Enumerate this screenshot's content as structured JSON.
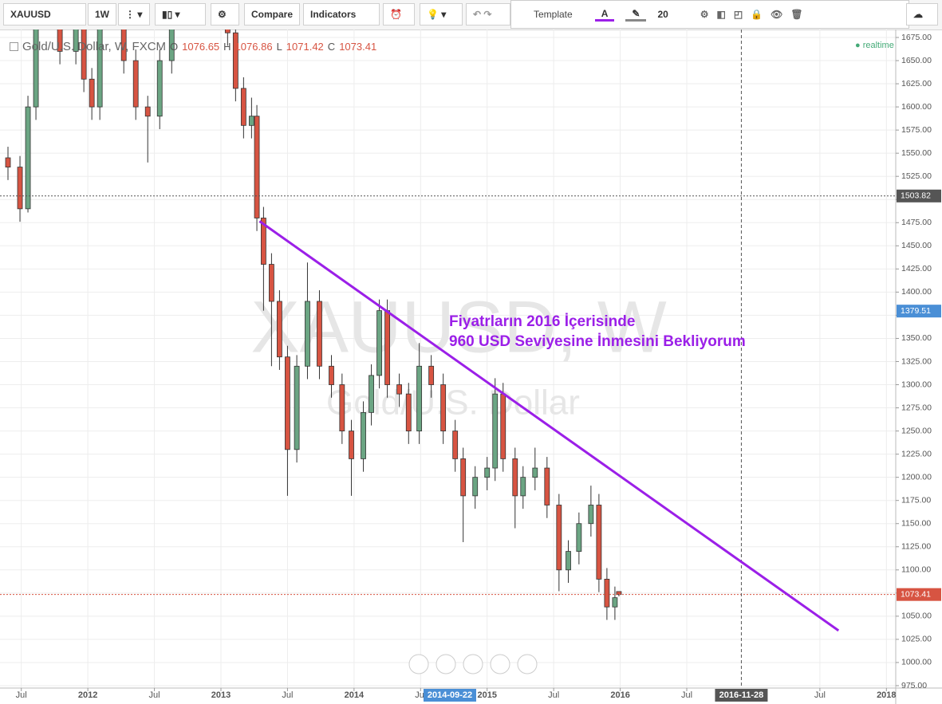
{
  "toolbar": {
    "symbol": "XAUUSD",
    "interval": "1W",
    "compare": "Compare",
    "indicators": "Indicators",
    "template": "Template",
    "font_size": 20
  },
  "legend": {
    "title": "Gold/U.S. Dollar, W, FXCM",
    "o_label": "O",
    "open": 1076.65,
    "h_label": "H",
    "high": 1076.86,
    "l_label": "L",
    "low": 1071.42,
    "c_label": "C",
    "close": 1073.41,
    "status": "realtime"
  },
  "chart_data": {
    "type": "candlestick",
    "watermark": {
      "symbol": "XAUUSD, W",
      "description": "Gold/U.S. Dollar"
    },
    "x": [
      2011.4,
      2011.49,
      2011.55,
      2011.61,
      2011.7,
      2011.79,
      2011.91,
      2011.97,
      2012.03,
      2012.09,
      2012.18,
      2012.27,
      2012.36,
      2012.45,
      2012.54,
      2012.63,
      2012.72,
      2012.84,
      2012.96,
      2013.05,
      2013.11,
      2013.17,
      2013.23,
      2013.27,
      2013.32,
      2013.38,
      2013.44,
      2013.5,
      2013.57,
      2013.65,
      2013.74,
      2013.83,
      2013.91,
      2013.98,
      2014.07,
      2014.13,
      2014.19,
      2014.25,
      2014.34,
      2014.41,
      2014.49,
      2014.58,
      2014.67,
      2014.76,
      2014.82,
      2014.91,
      2015.0,
      2015.06,
      2015.12,
      2015.21,
      2015.27,
      2015.36,
      2015.45,
      2015.54,
      2015.61,
      2015.69,
      2015.78,
      2015.84,
      2015.9,
      2015.96,
      2015.99
    ],
    "open": [
      1545,
      1535,
      1490,
      1600,
      1720,
      1750,
      1660,
      1720,
      1630,
      1600,
      1700,
      1720,
      1650,
      1600,
      1590,
      1650,
      1700,
      1750,
      1720,
      1700,
      1680,
      1620,
      1580,
      1590,
      1480,
      1430,
      1390,
      1330,
      1230,
      1320,
      1390,
      1320,
      1300,
      1250,
      1220,
      1270,
      1310,
      1380,
      1300,
      1290,
      1250,
      1320,
      1300,
      1250,
      1220,
      1180,
      1200,
      1210,
      1290,
      1220,
      1180,
      1200,
      1210,
      1170,
      1100,
      1120,
      1150,
      1170,
      1090,
      1060,
      1076.65
    ],
    "high": [
      1557,
      1547,
      1612,
      1732,
      1762,
      1762,
      1732,
      1732,
      1642,
      1712,
      1732,
      1732,
      1662,
      1612,
      1662,
      1712,
      1762,
      1762,
      1732,
      1712,
      1692,
      1632,
      1610,
      1602,
      1492,
      1442,
      1402,
      1342,
      1332,
      1432,
      1402,
      1332,
      1312,
      1262,
      1282,
      1322,
      1392,
      1392,
      1312,
      1302,
      1345,
      1332,
      1312,
      1262,
      1232,
      1212,
      1222,
      1307,
      1302,
      1232,
      1212,
      1232,
      1222,
      1182,
      1132,
      1162,
      1191,
      1182,
      1102,
      1082,
      1076.86
    ],
    "low": [
      1521,
      1476,
      1486,
      1586,
      1706,
      1646,
      1646,
      1616,
      1586,
      1586,
      1686,
      1636,
      1586,
      1540,
      1576,
      1636,
      1686,
      1706,
      1686,
      1666,
      1606,
      1566,
      1566,
      1466,
      1380,
      1320,
      1316,
      1180,
      1216,
      1306,
      1306,
      1286,
      1236,
      1180,
      1206,
      1256,
      1296,
      1286,
      1276,
      1236,
      1236,
      1286,
      1236,
      1206,
      1130,
      1166,
      1186,
      1196,
      1206,
      1145,
      1166,
      1186,
      1156,
      1077,
      1086,
      1106,
      1136,
      1076,
      1046,
      1046,
      1071.42
    ],
    "close": [
      1535,
      1490,
      1600,
      1720,
      1750,
      1660,
      1720,
      1630,
      1600,
      1700,
      1720,
      1650,
      1600,
      1590,
      1650,
      1700,
      1750,
      1720,
      1700,
      1680,
      1620,
      1580,
      1590,
      1480,
      1430,
      1390,
      1330,
      1230,
      1320,
      1390,
      1320,
      1300,
      1250,
      1220,
      1270,
      1310,
      1380,
      1300,
      1290,
      1250,
      1320,
      1300,
      1250,
      1220,
      1180,
      1200,
      1210,
      1290,
      1220,
      1180,
      1200,
      1210,
      1170,
      1100,
      1120,
      1150,
      1170,
      1090,
      1060,
      1070,
      1073.41
    ],
    "up_color": "#6ba583",
    "down_color": "#d75442",
    "xlim": [
      2011.34,
      2018.07
    ],
    "ylim": [
      972.4,
      1683.6
    ],
    "xticks": [
      {
        "value": 2011.5,
        "label": "Jul"
      },
      2012,
      {
        "value": 2012.5,
        "label": "Jul"
      },
      2013,
      {
        "value": 2013.5,
        "label": "Jul"
      },
      2014,
      {
        "value": 2014.5,
        "label": "Jul"
      },
      2015,
      {
        "value": 2015.5,
        "label": "Jul"
      },
      2016,
      {
        "value": 2016.5,
        "label": "Jul"
      },
      {
        "value": 2017.5,
        "label": "Jul"
      },
      2018
    ],
    "yticks": [
      {
        "value": 975,
        "label": "975.00"
      },
      {
        "value": 1000,
        "label": "1000.00"
      },
      {
        "value": 1025,
        "label": "1025.00"
      },
      {
        "value": 1050,
        "label": "1050.00"
      },
      {
        "value": 1075,
        "label": "1075.00"
      },
      {
        "value": 1100,
        "label": "1100.00"
      },
      {
        "value": 1125,
        "label": "1125.00"
      },
      {
        "value": 1150,
        "label": "1150.00"
      },
      {
        "value": 1175,
        "label": "1175.00"
      },
      {
        "value": 1200,
        "label": "1200.00"
      },
      {
        "value": 1225,
        "label": "1225.00"
      },
      {
        "value": 1250,
        "label": "1250.00"
      },
      {
        "value": 1275,
        "label": "1275.00"
      },
      {
        "value": 1300,
        "label": "1300.00"
      },
      {
        "value": 1325,
        "label": "1325.00"
      },
      {
        "value": 1350,
        "label": "1350.00"
      },
      {
        "value": 1375,
        "label": "1375.00"
      },
      {
        "value": 1400,
        "label": "1400.00"
      },
      {
        "value": 1425,
        "label": "1425.00"
      },
      {
        "value": 1450,
        "label": "1450.00"
      },
      {
        "value": 1475,
        "label": "1475.00"
      },
      {
        "value": 1500,
        "label": "1500.00"
      },
      {
        "value": 1525,
        "label": "1525.00"
      },
      {
        "value": 1550,
        "label": "1550.00"
      },
      {
        "value": 1575,
        "label": "1575.00"
      },
      {
        "value": 1600,
        "label": "1600.00"
      },
      {
        "value": 1625,
        "label": "1625.00"
      },
      {
        "value": 1650,
        "label": "1650.00"
      },
      {
        "value": 1675,
        "label": "1675.00"
      }
    ],
    "grid": true,
    "x_markers": [
      {
        "value": 2014.72,
        "label": "2014-09-22",
        "color": "#4a8fd6",
        "line": false
      },
      {
        "value": 2016.91,
        "label": "2016-11-28",
        "color": "#555555",
        "line": true
      }
    ],
    "price_lines": [
      {
        "value": 1503.82,
        "color": "#555555",
        "line": true
      },
      {
        "value": 1379.51,
        "color": "#4a8fd6",
        "line": false
      },
      {
        "value": 1073.41,
        "color": "#d75442",
        "line": true
      }
    ],
    "trendline": {
      "x": [
        2013.29,
        2017.64
      ],
      "y": [
        1476.5,
        1034.5
      ],
      "color": "#9b1fe8"
    },
    "annotation": [
      "Fiyatrların 2016 İçerisinde",
      "960 USD Seviyesine İnmesini Bekliyorum"
    ]
  }
}
